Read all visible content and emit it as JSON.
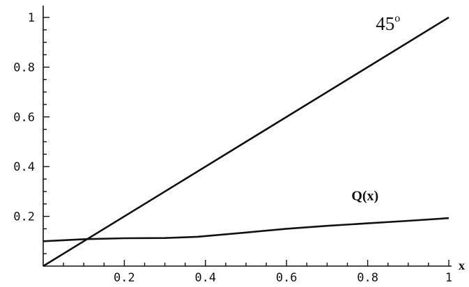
{
  "chart_data": {
    "type": "line",
    "title": "",
    "xlabel": "x",
    "ylabel": "",
    "xlim": [
      0,
      1
    ],
    "ylim": [
      0,
      1
    ],
    "grid": false,
    "x_ticks": [
      0.2,
      0.4,
      0.6,
      0.8,
      1
    ],
    "x_tick_labels": [
      "0.2",
      "0.4",
      "0.6",
      "0.8",
      "1"
    ],
    "y_ticks": [
      0.2,
      0.4,
      0.6,
      0.8,
      1
    ],
    "y_tick_labels": [
      "0.2",
      "0.4",
      "0.6",
      "0.8",
      "1"
    ],
    "series": [
      {
        "name": "45°",
        "x": [
          0,
          1
        ],
        "y": [
          0,
          1
        ]
      },
      {
        "name": "Q(x)",
        "x": [
          0,
          0.1,
          0.2,
          0.3,
          0.38,
          0.5,
          0.6,
          0.7,
          0.8,
          0.9,
          1
        ],
        "y": [
          0.1,
          0.108,
          0.112,
          0.113,
          0.118,
          0.135,
          0.15,
          0.162,
          0.172,
          0.182,
          0.193
        ]
      }
    ],
    "annotations": [
      {
        "text": "45",
        "superscript": "o",
        "series": "45°"
      },
      {
        "text": "Q(x)",
        "series": "Q(x)"
      }
    ]
  }
}
